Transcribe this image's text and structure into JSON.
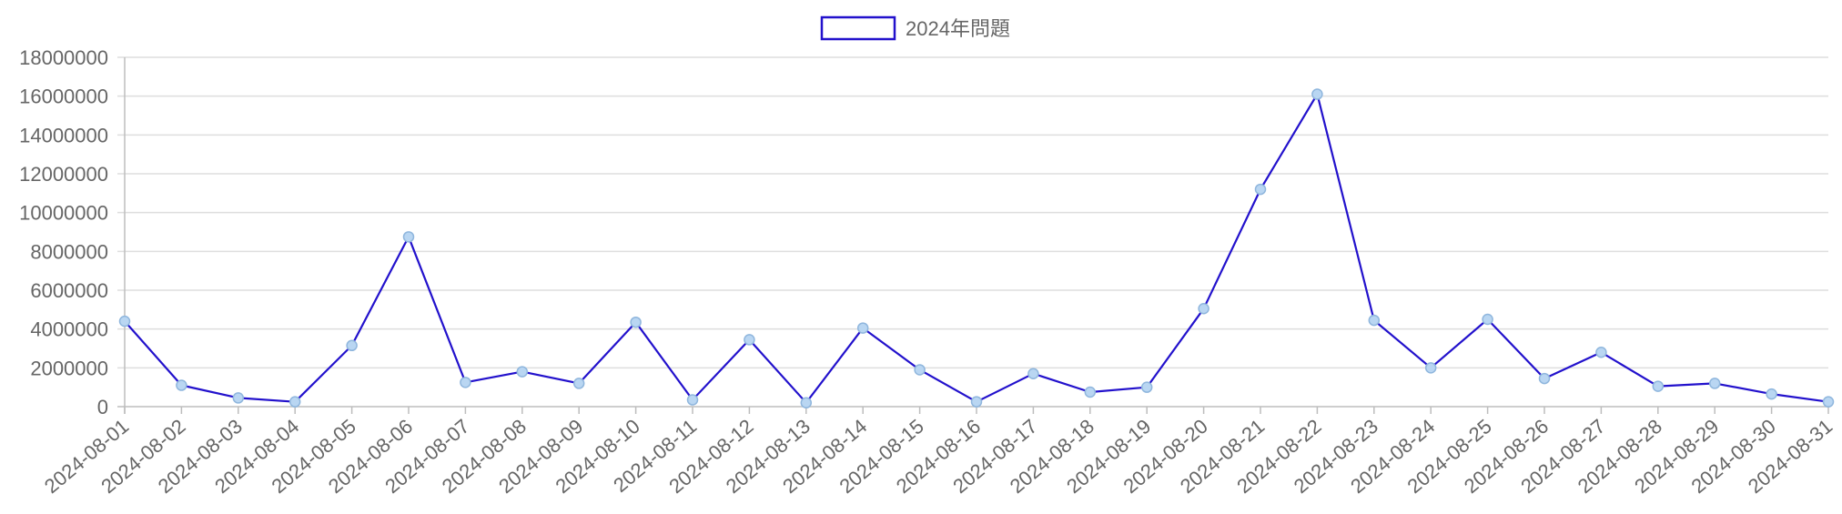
{
  "colors": {
    "line": "#2211cc",
    "point_fill": "#b9d6f2",
    "point_stroke": "#8fb6dd",
    "grid": "#dedede",
    "axis": "#bdbdbd"
  },
  "chart_data": {
    "type": "line",
    "title": "",
    "xlabel": "",
    "ylabel": "",
    "ylim": [
      0,
      18000000
    ],
    "yticks": [
      "0",
      "2000000",
      "4000000",
      "6000000",
      "8000000",
      "10000000",
      "12000000",
      "14000000",
      "16000000",
      "18000000"
    ],
    "grid": true,
    "legend_position": "top-center",
    "categories": [
      "2024-08-01",
      "2024-08-02",
      "2024-08-03",
      "2024-08-04",
      "2024-08-05",
      "2024-08-06",
      "2024-08-07",
      "2024-08-08",
      "2024-08-09",
      "2024-08-10",
      "2024-08-11",
      "2024-08-12",
      "2024-08-13",
      "2024-08-14",
      "2024-08-15",
      "2024-08-16",
      "2024-08-17",
      "2024-08-18",
      "2024-08-19",
      "2024-08-20",
      "2024-08-21",
      "2024-08-22",
      "2024-08-23",
      "2024-08-24",
      "2024-08-25",
      "2024-08-26",
      "2024-08-27",
      "2024-08-28",
      "2024-08-29",
      "2024-08-30",
      "2024-08-31"
    ],
    "series": [
      {
        "name": "2024年問題",
        "values": [
          4400000,
          1100000,
          450000,
          250000,
          3150000,
          8750000,
          1250000,
          1800000,
          1200000,
          4350000,
          350000,
          3450000,
          200000,
          4050000,
          1900000,
          250000,
          1700000,
          750000,
          1000000,
          5050000,
          11200000,
          16100000,
          4450000,
          2000000,
          4500000,
          1450000,
          2800000,
          1050000,
          1200000,
          650000,
          250000
        ]
      }
    ]
  }
}
